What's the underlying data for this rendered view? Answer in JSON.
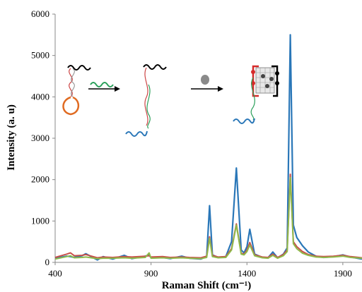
{
  "chart_data": {
    "type": "line",
    "title": "",
    "xlabel": "Raman Shift (cm⁻¹)",
    "ylabel": "Intensity (a. u)",
    "xlim": [
      400,
      2000
    ],
    "ylim": [
      0,
      6000
    ],
    "xticks": [
      "400",
      "900",
      "1400",
      "1900"
    ],
    "yticks": [
      "0",
      "1000",
      "2000",
      "3000",
      "4000",
      "5000",
      "6000"
    ],
    "grid": false,
    "legend": "none",
    "colors": {
      "blue": "#2a77b8",
      "red": "#c8504a",
      "green": "#8fba4a"
    },
    "series": [
      {
        "color": "blue",
        "x": [
          400,
          460,
          480,
          500,
          540,
          560,
          620,
          650,
          700,
          760,
          800,
          870,
          890,
          900,
          960,
          1000,
          1060,
          1100,
          1160,
          1190,
          1205,
          1220,
          1250,
          1290,
          1320,
          1345,
          1370,
          1385,
          1400,
          1415,
          1440,
          1480,
          1510,
          1535,
          1560,
          1590,
          1610,
          1626,
          1642,
          1660,
          1690,
          1720,
          1760,
          1800,
          1850,
          1900,
          1940,
          2000
        ],
        "y": [
          100,
          150,
          140,
          120,
          160,
          210,
          60,
          140,
          80,
          170,
          90,
          150,
          180,
          110,
          120,
          90,
          150,
          100,
          80,
          140,
          1370,
          180,
          120,
          140,
          500,
          2280,
          300,
          230,
          380,
          800,
          200,
          120,
          110,
          250,
          110,
          200,
          350,
          5500,
          900,
          600,
          400,
          250,
          150,
          120,
          140,
          180,
          130,
          80
        ]
      },
      {
        "color": "red",
        "x": [
          400,
          460,
          480,
          500,
          540,
          560,
          620,
          650,
          700,
          760,
          800,
          870,
          890,
          900,
          960,
          1000,
          1060,
          1100,
          1160,
          1190,
          1205,
          1220,
          1250,
          1290,
          1320,
          1345,
          1370,
          1385,
          1400,
          1415,
          1440,
          1480,
          1510,
          1535,
          1560,
          1590,
          1610,
          1626,
          1642,
          1660,
          1690,
          1720,
          1760,
          1800,
          1850,
          1900,
          1940,
          2000
        ],
        "y": [
          120,
          200,
          230,
          160,
          170,
          190,
          110,
          130,
          120,
          140,
          130,
          150,
          160,
          130,
          140,
          120,
          130,
          120,
          110,
          150,
          620,
          170,
          130,
          140,
          330,
          930,
          220,
          200,
          300,
          480,
          180,
          130,
          120,
          200,
          120,
          190,
          300,
          2130,
          500,
          380,
          260,
          190,
          150,
          140,
          150,
          170,
          140,
          110
        ]
      },
      {
        "color": "green",
        "x": [
          400,
          460,
          480,
          500,
          540,
          560,
          620,
          650,
          700,
          760,
          800,
          870,
          890,
          900,
          960,
          1000,
          1060,
          1100,
          1160,
          1190,
          1205,
          1220,
          1250,
          1290,
          1320,
          1345,
          1370,
          1385,
          1400,
          1415,
          1440,
          1480,
          1510,
          1535,
          1560,
          1590,
          1610,
          1626,
          1642,
          1660,
          1690,
          1720,
          1760,
          1800,
          1850,
          1900,
          1940,
          2000
        ],
        "y": [
          80,
          140,
          160,
          110,
          120,
          130,
          90,
          100,
          100,
          110,
          100,
          120,
          230,
          100,
          110,
          100,
          110,
          100,
          90,
          120,
          580,
          140,
          110,
          120,
          300,
          900,
          200,
          180,
          260,
          420,
          160,
          110,
          100,
          170,
          100,
          160,
          260,
          2050,
          450,
          330,
          220,
          170,
          130,
          120,
          130,
          150,
          120,
          100
        ]
      }
    ]
  },
  "inset": {
    "description_icons": [
      "hairpin-probe-icon",
      "arrow-icon",
      "target-strand-icon",
      "arrow-icon",
      "nanoparticle-icon",
      "arrow-icon",
      "nanoparticle-assembly-icon"
    ]
  }
}
